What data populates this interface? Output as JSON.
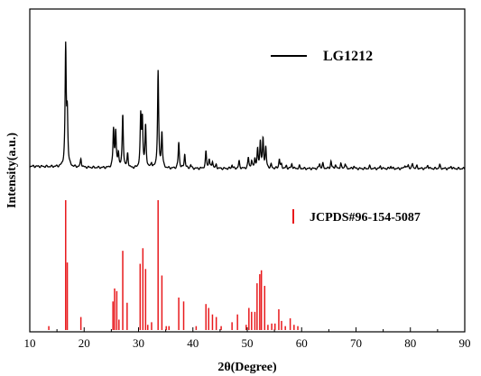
{
  "chart_data": {
    "type": "line",
    "xlabel": "2θ(Degree)",
    "ylabel": "Intensity(a.u.)",
    "xlim": [
      10,
      90
    ],
    "xticks": [
      10,
      20,
      30,
      40,
      50,
      60,
      70,
      80,
      90
    ],
    "grid": false,
    "legend_placement": "inside, upper-right of each panel",
    "series": [
      {
        "name": "LG1212",
        "color": "#000000",
        "style": "continuous pattern",
        "baseline": 0.0,
        "points": [
          [
            16.6,
            1.0
          ],
          [
            16.9,
            0.42
          ],
          [
            19.4,
            0.07
          ],
          [
            25.4,
            0.32
          ],
          [
            25.8,
            0.3
          ],
          [
            26.3,
            0.12
          ],
          [
            27.1,
            0.45
          ],
          [
            28.0,
            0.12
          ],
          [
            30.4,
            0.42
          ],
          [
            30.7,
            0.4
          ],
          [
            31.3,
            0.35
          ],
          [
            32.4,
            0.04
          ],
          [
            33.6,
            0.82
          ],
          [
            34.3,
            0.3
          ],
          [
            37.4,
            0.22
          ],
          [
            38.5,
            0.12
          ],
          [
            39.6,
            0.03
          ],
          [
            42.4,
            0.14
          ],
          [
            43.0,
            0.08
          ],
          [
            43.6,
            0.06
          ],
          [
            44.3,
            0.03
          ],
          [
            47.2,
            0.03
          ],
          [
            48.5,
            0.06
          ],
          [
            50.2,
            0.09
          ],
          [
            50.8,
            0.06
          ],
          [
            51.4,
            0.08
          ],
          [
            51.9,
            0.15
          ],
          [
            52.4,
            0.22
          ],
          [
            52.9,
            0.24
          ],
          [
            53.4,
            0.17
          ],
          [
            54.4,
            0.03
          ],
          [
            55.9,
            0.08
          ],
          [
            56.3,
            0.03
          ],
          [
            57.2,
            0.02
          ],
          [
            58.2,
            0.04
          ],
          [
            59.6,
            0.02
          ],
          [
            63.3,
            0.04
          ],
          [
            63.9,
            0.04
          ],
          [
            65.4,
            0.06
          ],
          [
            66.2,
            0.03
          ],
          [
            67.2,
            0.04
          ],
          [
            68.0,
            0.04
          ],
          [
            69.6,
            0.02
          ],
          [
            72.5,
            0.02
          ],
          [
            74.5,
            0.02
          ],
          [
            76.4,
            0.02
          ],
          [
            79.0,
            0.03
          ],
          [
            79.6,
            0.03
          ],
          [
            80.4,
            0.04
          ],
          [
            81.2,
            0.02
          ],
          [
            83.2,
            0.03
          ],
          [
            85.4,
            0.03
          ],
          [
            87.5,
            0.02
          ]
        ]
      },
      {
        "name": "JCPDS#96-154-5087",
        "color": "#e8191c",
        "style": "stick pattern",
        "points": [
          [
            13.5,
            0.03
          ],
          [
            16.6,
            1.0
          ],
          [
            16.9,
            0.52
          ],
          [
            19.4,
            0.1
          ],
          [
            25.3,
            0.22
          ],
          [
            25.6,
            0.32
          ],
          [
            26.0,
            0.3
          ],
          [
            26.4,
            0.08
          ],
          [
            27.1,
            0.61
          ],
          [
            27.9,
            0.21
          ],
          [
            30.3,
            0.51
          ],
          [
            30.8,
            0.63
          ],
          [
            31.3,
            0.47
          ],
          [
            31.7,
            0.04
          ],
          [
            32.4,
            0.06
          ],
          [
            33.6,
            1.0
          ],
          [
            34.3,
            0.42
          ],
          [
            35.1,
            0.03
          ],
          [
            35.6,
            0.03
          ],
          [
            37.4,
            0.25
          ],
          [
            38.3,
            0.22
          ],
          [
            40.6,
            0.03
          ],
          [
            42.4,
            0.2
          ],
          [
            42.9,
            0.17
          ],
          [
            43.6,
            0.12
          ],
          [
            44.3,
            0.1
          ],
          [
            45.2,
            0.03
          ],
          [
            47.2,
            0.06
          ],
          [
            48.2,
            0.12
          ],
          [
            49.8,
            0.04
          ],
          [
            50.3,
            0.17
          ],
          [
            50.8,
            0.14
          ],
          [
            51.4,
            0.14
          ],
          [
            51.8,
            0.36
          ],
          [
            52.3,
            0.43
          ],
          [
            52.6,
            0.46
          ],
          [
            53.2,
            0.34
          ],
          [
            53.8,
            0.04
          ],
          [
            54.5,
            0.05
          ],
          [
            55.1,
            0.05
          ],
          [
            55.8,
            0.16
          ],
          [
            56.3,
            0.07
          ],
          [
            57.0,
            0.03
          ],
          [
            57.9,
            0.09
          ],
          [
            58.6,
            0.04
          ],
          [
            59.3,
            0.03
          ]
        ]
      }
    ]
  }
}
